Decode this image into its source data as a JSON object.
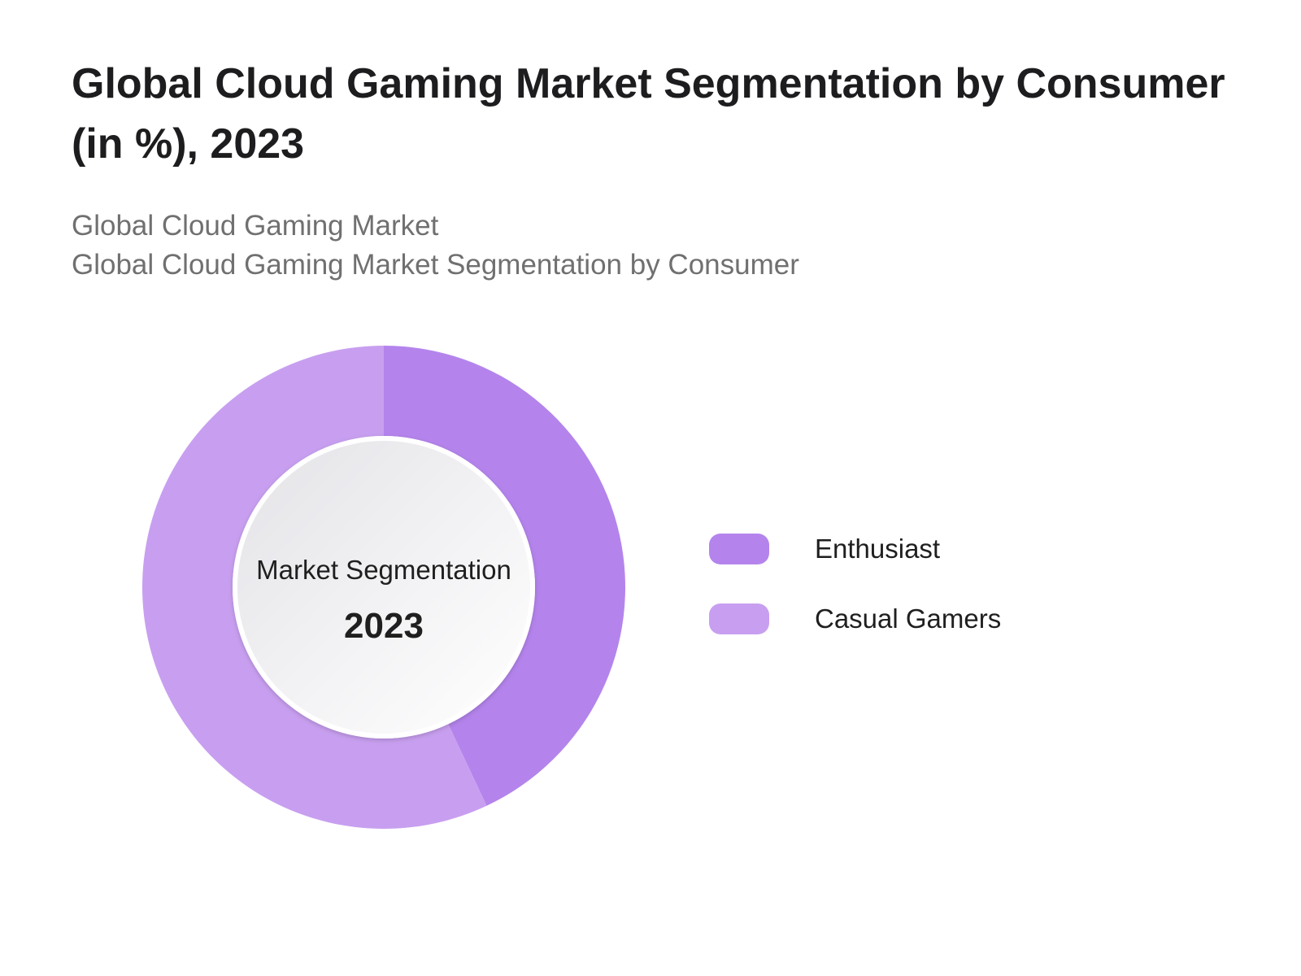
{
  "header": {
    "title": "Global Cloud Gaming Market Segmentation by Consumer (in %), 2023",
    "subtitle_line1": "Global Cloud Gaming Market",
    "subtitle_line2": "Global Cloud Gaming Market Segmentation by Consumer"
  },
  "center": {
    "label": "Market Segmentation",
    "year": "2023"
  },
  "chart_data": {
    "type": "pie",
    "title": "Global Cloud Gaming Market Segmentation by Consumer (in %), 2023",
    "categories": [
      "Enthusiast",
      "Casual Gamers"
    ],
    "values": [
      43,
      57
    ],
    "unit": "%",
    "colors": [
      "#b484ec",
      "#c89ff0"
    ],
    "donut": true,
    "legend_position": "right"
  }
}
